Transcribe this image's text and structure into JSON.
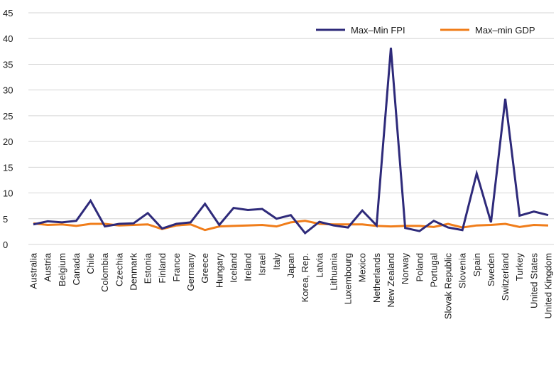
{
  "chart_data": {
    "type": "line",
    "title": "",
    "xlabel": "",
    "ylabel": "",
    "ylim": [
      0,
      45
    ],
    "yticks": [
      0,
      5,
      10,
      15,
      20,
      25,
      30,
      35,
      40,
      45
    ],
    "grid": "horizontal",
    "legend_position": "top-right",
    "categories": [
      "Australia",
      "Austria",
      "Belgium",
      "Canada",
      "Chile",
      "Colombia",
      "Czechia",
      "Denmark",
      "Estonia",
      "Finland",
      "France",
      "Germany",
      "Greece",
      "Hungary",
      "Iceland",
      "Ireland",
      "Israel",
      "Italy",
      "Japan",
      "Korea, Rep.",
      "Latvia",
      "Lithuania",
      "Luxembourg",
      "Mexico",
      "Netherlands",
      "New Zealand",
      "Norway",
      "Poland",
      "Portugal",
      "Slovak Republic",
      "Slovenia",
      "Spain",
      "Sweden",
      "Switzerland",
      "Turkey",
      "United States",
      "United Kingdom"
    ],
    "series": [
      {
        "name": "Max–Min FPI",
        "color": "#2e2a7a",
        "values": [
          3.9,
          4.5,
          4.3,
          4.6,
          8.5,
          3.5,
          4.0,
          4.1,
          6.1,
          3.1,
          4.0,
          4.3,
          7.9,
          3.8,
          7.1,
          6.7,
          6.9,
          5.0,
          5.7,
          2.2,
          4.4,
          3.7,
          3.3,
          6.6,
          3.7,
          38.2,
          3.2,
          2.6,
          4.6,
          3.3,
          2.8,
          13.8,
          4.3,
          28.3,
          5.6,
          6.4,
          5.7
        ]
      },
      {
        "name": "Max–min GDP",
        "color": "#f07d1a",
        "values": [
          4.1,
          3.8,
          3.9,
          3.6,
          4.0,
          4.0,
          3.7,
          3.8,
          3.9,
          3.0,
          3.7,
          3.9,
          2.8,
          3.5,
          3.6,
          3.7,
          3.8,
          3.5,
          4.3,
          4.6,
          4.0,
          3.9,
          3.9,
          3.9,
          3.6,
          3.5,
          3.6,
          3.6,
          3.4,
          4.0,
          3.3,
          3.7,
          3.8,
          4.0,
          3.4,
          3.8,
          3.7
        ]
      }
    ]
  }
}
